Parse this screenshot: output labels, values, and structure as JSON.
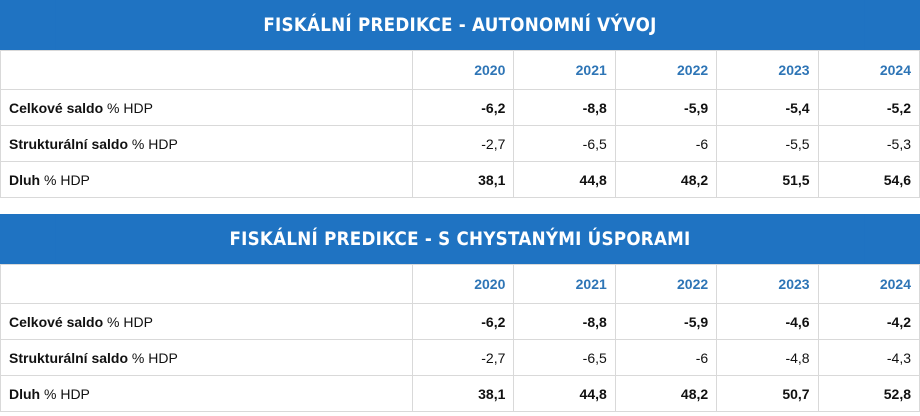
{
  "chart_data": [
    {
      "type": "table",
      "title": "FISKÁLNÍ PREDIKCE - AUTONOMNÍ VÝVOJ",
      "columns": [
        "2020",
        "2021",
        "2022",
        "2023",
        "2024"
      ],
      "rows": [
        {
          "label_bold": "Celkové saldo",
          "label_rest": " % HDP",
          "values": [
            "-6,2",
            "-8,8",
            "-5,9",
            "-5,4",
            "-5,2"
          ],
          "bold": true
        },
        {
          "label_bold": "Strukturální saldo",
          "label_rest": " % HDP",
          "values": [
            "-2,7",
            "-6,5",
            "-6",
            "-5,5",
            "-5,3"
          ],
          "bold": false
        },
        {
          "label_bold": "Dluh",
          "label_rest": " % HDP",
          "values": [
            "38,1",
            "44,8",
            "48,2",
            "51,5",
            "54,6"
          ],
          "bold": true
        }
      ]
    },
    {
      "type": "table",
      "title": "FISKÁLNÍ PREDIKCE - S CHYSTANÝMI ÚSPORAMI",
      "columns": [
        "2020",
        "2021",
        "2022",
        "2023",
        "2024"
      ],
      "rows": [
        {
          "label_bold": "Celkové saldo",
          "label_rest": " % HDP",
          "values": [
            "-6,2",
            "-8,8",
            "-5,9",
            "-4,6",
            "-4,2"
          ],
          "bold": true
        },
        {
          "label_bold": "Strukturální saldo",
          "label_rest": " % HDP",
          "values": [
            "-2,7",
            "-6,5",
            "-6",
            "-4,8",
            "-4,3"
          ],
          "bold": false
        },
        {
          "label_bold": "Dluh",
          "label_rest": " % HDP",
          "values": [
            "38,1",
            "44,8",
            "48,2",
            "50,7",
            "52,8"
          ],
          "bold": true
        }
      ]
    }
  ],
  "colors": {
    "banner": "#1f73c2",
    "year_header": "#2e75b6",
    "grid": "#d9d9d9"
  }
}
